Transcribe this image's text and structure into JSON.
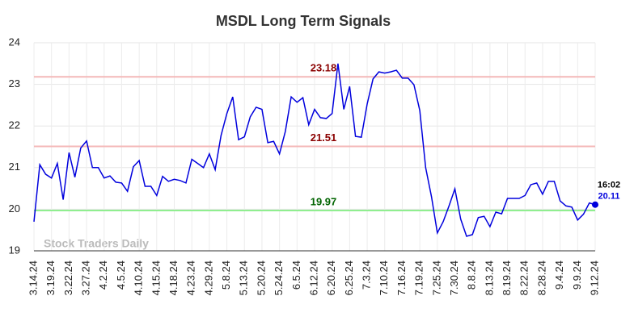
{
  "chart_data": {
    "type": "line",
    "title": "MSDL Long Term Signals",
    "categories": [
      "3.14.24",
      null,
      null,
      "3.19.24",
      null,
      null,
      "3.22.24",
      null,
      null,
      "3.27.24",
      null,
      null,
      "4.2.24",
      null,
      null,
      "4.5.24",
      null,
      null,
      "4.10.24",
      null,
      null,
      "4.15.24",
      null,
      null,
      "4.18.24",
      null,
      null,
      "4.23.24",
      null,
      null,
      "4.29.24",
      null,
      null,
      "5.8.24",
      null,
      null,
      "5.13.24",
      null,
      null,
      "5.20.24",
      null,
      null,
      "5.24.24",
      null,
      null,
      "6.5.24",
      null,
      null,
      "6.12.24",
      null,
      null,
      "6.20.24",
      null,
      null,
      "6.25.24",
      null,
      null,
      "7.3.24",
      null,
      null,
      "7.10.24",
      null,
      null,
      "7.16.24",
      null,
      null,
      "7.19.24",
      null,
      null,
      "7.25.24",
      null,
      null,
      "7.30.24",
      null,
      null,
      "8.8.24",
      null,
      null,
      "8.13.24",
      null,
      null,
      "8.19.24",
      null,
      null,
      "8.22.24",
      null,
      null,
      "8.28.24",
      null,
      null,
      "9.4.24",
      null,
      null,
      "9.9.24",
      null,
      null,
      "9.12.24"
    ],
    "values": [
      19.7,
      21.07,
      20.84,
      20.75,
      21.1,
      20.23,
      21.36,
      20.77,
      21.47,
      21.64,
      21.0,
      21.0,
      20.75,
      20.8,
      20.65,
      20.63,
      20.43,
      21.02,
      21.17,
      20.55,
      20.55,
      20.33,
      20.79,
      20.67,
      20.72,
      20.69,
      20.63,
      21.2,
      21.1,
      21.0,
      21.33,
      20.95,
      21.77,
      22.3,
      22.7,
      21.67,
      21.74,
      22.22,
      22.45,
      22.4,
      21.6,
      21.63,
      21.33,
      21.87,
      22.7,
      22.57,
      22.68,
      22.03,
      22.4,
      22.2,
      22.18,
      22.3,
      23.5,
      22.4,
      22.95,
      21.75,
      21.73,
      22.53,
      23.13,
      23.3,
      23.27,
      23.3,
      23.34,
      23.15,
      23.15,
      22.99,
      22.37,
      21.0,
      20.3,
      19.43,
      19.7,
      20.08,
      20.49,
      19.76,
      19.35,
      19.39,
      19.8,
      19.83,
      19.58,
      19.93,
      19.89,
      20.26,
      20.26,
      20.26,
      20.33,
      20.59,
      20.63,
      20.36,
      20.67,
      20.67,
      20.2,
      20.08,
      20.05,
      19.74,
      19.88,
      20.15,
      20.11
    ],
    "color": "#0000dd",
    "hlines": [
      {
        "value": 23.18,
        "color": "#f4b8b8",
        "label_color": "#8b0000"
      },
      {
        "value": 21.51,
        "color": "#f4b8b8",
        "label_color": "#8b0000"
      },
      {
        "value": 19.97,
        "color": "#90ee90",
        "label_color": "#006400"
      }
    ],
    "time_label": "16:02",
    "watermark": "Stock Traders Daily",
    "ylim": [
      19,
      24
    ],
    "yticks": [
      19,
      20,
      21,
      22,
      23,
      24
    ],
    "grid": true
  }
}
